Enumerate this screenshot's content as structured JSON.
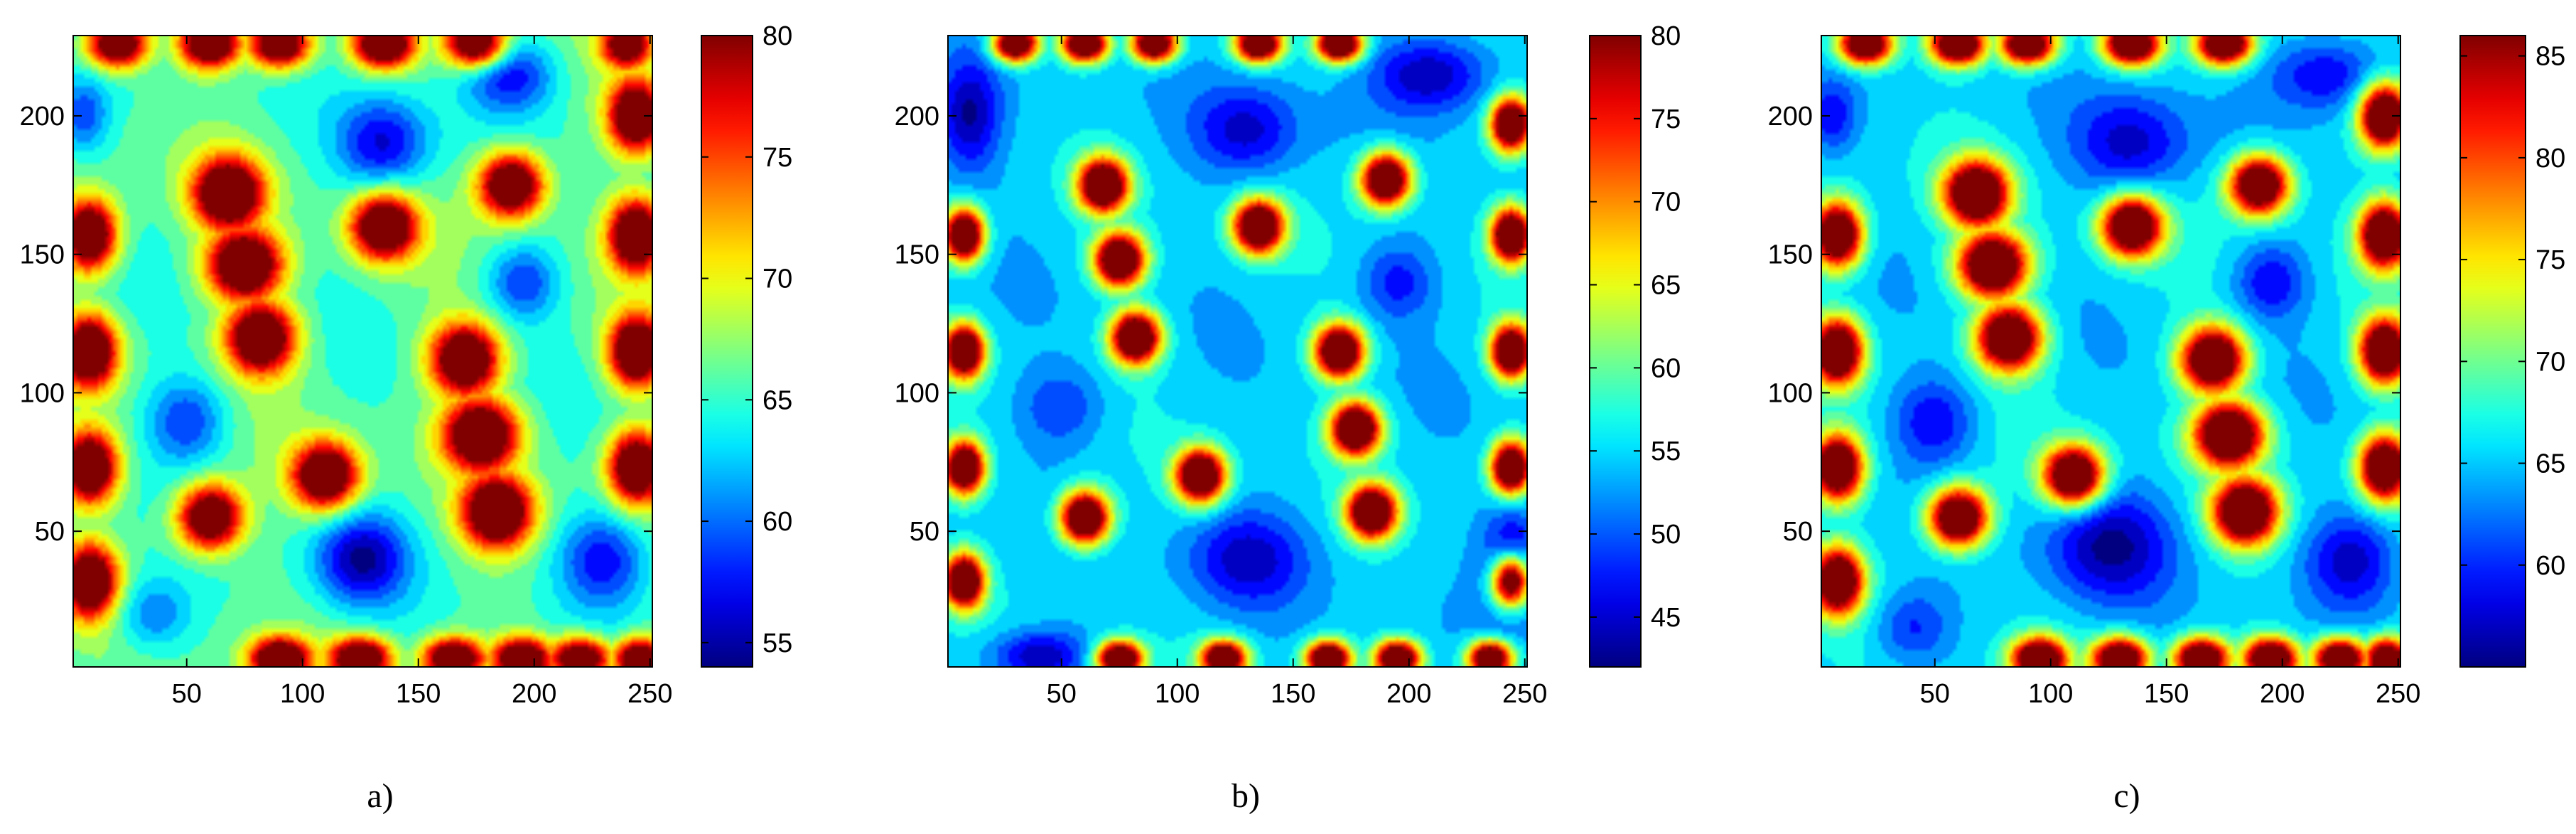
{
  "chart_data": [
    {
      "type": "heatmap",
      "caption": "a)",
      "xlim": [
        1,
        251
      ],
      "ylim": [
        1,
        229
      ],
      "x_ticks": [
        50,
        100,
        150,
        200,
        250
      ],
      "y_ticks": [
        50,
        100,
        150,
        200
      ],
      "colorbar": {
        "colormap": "jet",
        "min": 54,
        "max": 80,
        "ticks": [
          55,
          60,
          65,
          70,
          75,
          80
        ]
      },
      "background": 66,
      "hotspots": [
        {
          "x": 68,
          "y": 172,
          "peak": 80,
          "rx": 14,
          "ry": 12
        },
        {
          "x": 75,
          "y": 146,
          "peak": 80,
          "rx": 15,
          "ry": 12
        },
        {
          "x": 82,
          "y": 120,
          "peak": 80,
          "rx": 14,
          "ry": 12
        },
        {
          "x": 170,
          "y": 112,
          "peak": 80,
          "rx": 14,
          "ry": 12
        },
        {
          "x": 177,
          "y": 85,
          "peak": 80,
          "rx": 15,
          "ry": 12
        },
        {
          "x": 184,
          "y": 57,
          "peak": 80,
          "rx": 14,
          "ry": 12
        },
        {
          "x": 135,
          "y": 160,
          "peak": 80,
          "rx": 13,
          "ry": 11
        },
        {
          "x": 190,
          "y": 175,
          "peak": 80,
          "rx": 13,
          "ry": 11
        },
        {
          "x": 110,
          "y": 70,
          "peak": 80,
          "rx": 13,
          "ry": 11
        },
        {
          "x": 60,
          "y": 55,
          "peak": 80,
          "rx": 13,
          "ry": 11
        },
        {
          "x": 8,
          "y": 157,
          "peak": 80,
          "rx": 11,
          "ry": 12
        },
        {
          "x": 8,
          "y": 115,
          "peak": 80,
          "rx": 11,
          "ry": 12
        },
        {
          "x": 8,
          "y": 73,
          "peak": 80,
          "rx": 11,
          "ry": 12
        },
        {
          "x": 8,
          "y": 32,
          "peak": 80,
          "rx": 11,
          "ry": 12
        },
        {
          "x": 244,
          "y": 200,
          "peak": 80,
          "rx": 11,
          "ry": 12
        },
        {
          "x": 244,
          "y": 157,
          "peak": 80,
          "rx": 11,
          "ry": 12
        },
        {
          "x": 244,
          "y": 115,
          "peak": 80,
          "rx": 11,
          "ry": 12
        },
        {
          "x": 244,
          "y": 73,
          "peak": 80,
          "rx": 11,
          "ry": 12
        },
        {
          "x": 20,
          "y": 226,
          "peak": 80,
          "rx": 12,
          "ry": 8
        },
        {
          "x": 60,
          "y": 226,
          "peak": 80,
          "rx": 12,
          "ry": 8
        },
        {
          "x": 90,
          "y": 226,
          "peak": 80,
          "rx": 12,
          "ry": 8
        },
        {
          "x": 135,
          "y": 226,
          "peak": 80,
          "rx": 12,
          "ry": 8
        },
        {
          "x": 175,
          "y": 226,
          "peak": 80,
          "rx": 12,
          "ry": 8
        },
        {
          "x": 240,
          "y": 226,
          "peak": 78,
          "rx": 10,
          "ry": 8
        },
        {
          "x": 90,
          "y": 4,
          "peak": 80,
          "rx": 12,
          "ry": 7
        },
        {
          "x": 125,
          "y": 4,
          "peak": 80,
          "rx": 12,
          "ry": 7
        },
        {
          "x": 165,
          "y": 4,
          "peak": 80,
          "rx": 12,
          "ry": 7
        },
        {
          "x": 195,
          "y": 4,
          "peak": 80,
          "rx": 12,
          "ry": 7
        },
        {
          "x": 220,
          "y": 4,
          "peak": 80,
          "rx": 12,
          "ry": 7
        },
        {
          "x": 245,
          "y": 4,
          "peak": 80,
          "rx": 10,
          "ry": 7
        }
      ],
      "coldspots": [
        {
          "x": 135,
          "y": 190,
          "depth": 57,
          "rx": 18,
          "ry": 15
        },
        {
          "x": 190,
          "y": 215,
          "depth": 58,
          "rx": 18,
          "ry": 12
        },
        {
          "x": 125,
          "y": 40,
          "depth": 56,
          "rx": 18,
          "ry": 15
        },
        {
          "x": 50,
          "y": 90,
          "depth": 59,
          "rx": 16,
          "ry": 14
        },
        {
          "x": 230,
          "y": 40,
          "depth": 58,
          "rx": 18,
          "ry": 15
        },
        {
          "x": 35,
          "y": 20,
          "depth": 60,
          "rx": 15,
          "ry": 12
        },
        {
          "x": 195,
          "y": 140,
          "depth": 59,
          "rx": 14,
          "ry": 12
        },
        {
          "x": 5,
          "y": 200,
          "depth": 59,
          "rx": 10,
          "ry": 12
        }
      ]
    },
    {
      "type": "heatmap",
      "caption": "b)",
      "xlim": [
        1,
        251
      ],
      "ylim": [
        1,
        229
      ],
      "x_ticks": [
        50,
        100,
        150,
        200,
        250
      ],
      "y_ticks": [
        50,
        100,
        150,
        200
      ],
      "colorbar": {
        "colormap": "jet",
        "min": 42,
        "max": 80,
        "ticks": [
          45,
          50,
          55,
          60,
          65,
          70,
          75,
          80
        ]
      },
      "background": 55,
      "hotspots": [
        {
          "x": 68,
          "y": 175,
          "peak": 80,
          "rx": 10,
          "ry": 9
        },
        {
          "x": 75,
          "y": 148,
          "peak": 80,
          "rx": 10,
          "ry": 9
        },
        {
          "x": 82,
          "y": 120,
          "peak": 80,
          "rx": 10,
          "ry": 9
        },
        {
          "x": 170,
          "y": 115,
          "peak": 80,
          "rx": 10,
          "ry": 9
        },
        {
          "x": 177,
          "y": 87,
          "peak": 80,
          "rx": 10,
          "ry": 9
        },
        {
          "x": 184,
          "y": 57,
          "peak": 80,
          "rx": 10,
          "ry": 9
        },
        {
          "x": 135,
          "y": 160,
          "peak": 80,
          "rx": 10,
          "ry": 9
        },
        {
          "x": 190,
          "y": 177,
          "peak": 80,
          "rx": 10,
          "ry": 9
        },
        {
          "x": 110,
          "y": 70,
          "peak": 80,
          "rx": 10,
          "ry": 9
        },
        {
          "x": 60,
          "y": 55,
          "peak": 80,
          "rx": 10,
          "ry": 9
        },
        {
          "x": 8,
          "y": 157,
          "peak": 80,
          "rx": 8,
          "ry": 9
        },
        {
          "x": 8,
          "y": 115,
          "peak": 80,
          "rx": 8,
          "ry": 9
        },
        {
          "x": 8,
          "y": 73,
          "peak": 80,
          "rx": 8,
          "ry": 9
        },
        {
          "x": 8,
          "y": 32,
          "peak": 80,
          "rx": 8,
          "ry": 9
        },
        {
          "x": 244,
          "y": 197,
          "peak": 80,
          "rx": 8,
          "ry": 9
        },
        {
          "x": 244,
          "y": 157,
          "peak": 80,
          "rx": 8,
          "ry": 9
        },
        {
          "x": 244,
          "y": 115,
          "peak": 80,
          "rx": 8,
          "ry": 9
        },
        {
          "x": 244,
          "y": 73,
          "peak": 80,
          "rx": 8,
          "ry": 9
        },
        {
          "x": 244,
          "y": 32,
          "peak": 80,
          "rx": 8,
          "ry": 9
        },
        {
          "x": 30,
          "y": 226,
          "peak": 80,
          "rx": 9,
          "ry": 6
        },
        {
          "x": 60,
          "y": 226,
          "peak": 80,
          "rx": 9,
          "ry": 6
        },
        {
          "x": 90,
          "y": 226,
          "peak": 80,
          "rx": 9,
          "ry": 6
        },
        {
          "x": 135,
          "y": 226,
          "peak": 80,
          "rx": 9,
          "ry": 6
        },
        {
          "x": 170,
          "y": 226,
          "peak": 80,
          "rx": 9,
          "ry": 6
        },
        {
          "x": 75,
          "y": 4,
          "peak": 80,
          "rx": 9,
          "ry": 6
        },
        {
          "x": 120,
          "y": 4,
          "peak": 80,
          "rx": 9,
          "ry": 6
        },
        {
          "x": 165,
          "y": 4,
          "peak": 80,
          "rx": 9,
          "ry": 6
        },
        {
          "x": 195,
          "y": 4,
          "peak": 80,
          "rx": 9,
          "ry": 6
        },
        {
          "x": 235,
          "y": 4,
          "peak": 80,
          "rx": 9,
          "ry": 6
        }
      ],
      "coldspots": [
        {
          "x": 130,
          "y": 195,
          "depth": 46,
          "rx": 20,
          "ry": 14
        },
        {
          "x": 210,
          "y": 215,
          "depth": 44,
          "rx": 22,
          "ry": 12
        },
        {
          "x": 10,
          "y": 200,
          "depth": 44,
          "rx": 12,
          "ry": 18
        },
        {
          "x": 130,
          "y": 40,
          "depth": 46,
          "rx": 22,
          "ry": 15
        },
        {
          "x": 245,
          "y": 40,
          "depth": 44,
          "rx": 12,
          "ry": 18
        },
        {
          "x": 40,
          "y": 5,
          "depth": 44,
          "rx": 18,
          "ry": 8
        },
        {
          "x": 50,
          "y": 95,
          "depth": 49,
          "rx": 16,
          "ry": 12
        },
        {
          "x": 195,
          "y": 140,
          "depth": 48,
          "rx": 14,
          "ry": 12
        }
      ]
    },
    {
      "type": "heatmap",
      "caption": "c)",
      "xlim": [
        1,
        251
      ],
      "ylim": [
        1,
        229
      ],
      "x_ticks": [
        50,
        100,
        150,
        200,
        250
      ],
      "y_ticks": [
        50,
        100,
        150,
        200
      ],
      "colorbar": {
        "colormap": "jet",
        "min": 55,
        "max": 86,
        "ticks": [
          60,
          65,
          70,
          75,
          80,
          85
        ]
      },
      "background": 66,
      "hotspots": [
        {
          "x": 68,
          "y": 172,
          "peak": 86,
          "rx": 13,
          "ry": 11
        },
        {
          "x": 75,
          "y": 146,
          "peak": 86,
          "rx": 14,
          "ry": 11
        },
        {
          "x": 82,
          "y": 120,
          "peak": 86,
          "rx": 13,
          "ry": 11
        },
        {
          "x": 170,
          "y": 112,
          "peak": 86,
          "rx": 13,
          "ry": 11
        },
        {
          "x": 177,
          "y": 85,
          "peak": 86,
          "rx": 14,
          "ry": 11
        },
        {
          "x": 184,
          "y": 57,
          "peak": 86,
          "rx": 13,
          "ry": 11
        },
        {
          "x": 135,
          "y": 160,
          "peak": 86,
          "rx": 12,
          "ry": 10
        },
        {
          "x": 190,
          "y": 175,
          "peak": 86,
          "rx": 12,
          "ry": 10
        },
        {
          "x": 110,
          "y": 70,
          "peak": 86,
          "rx": 12,
          "ry": 10
        },
        {
          "x": 60,
          "y": 55,
          "peak": 86,
          "rx": 12,
          "ry": 10
        },
        {
          "x": 8,
          "y": 157,
          "peak": 86,
          "rx": 10,
          "ry": 11
        },
        {
          "x": 8,
          "y": 115,
          "peak": 86,
          "rx": 10,
          "ry": 11
        },
        {
          "x": 8,
          "y": 73,
          "peak": 86,
          "rx": 10,
          "ry": 11
        },
        {
          "x": 8,
          "y": 32,
          "peak": 86,
          "rx": 10,
          "ry": 11
        },
        {
          "x": 244,
          "y": 200,
          "peak": 86,
          "rx": 10,
          "ry": 11
        },
        {
          "x": 244,
          "y": 157,
          "peak": 86,
          "rx": 10,
          "ry": 11
        },
        {
          "x": 244,
          "y": 115,
          "peak": 86,
          "rx": 10,
          "ry": 11
        },
        {
          "x": 244,
          "y": 73,
          "peak": 86,
          "rx": 10,
          "ry": 11
        },
        {
          "x": 20,
          "y": 226,
          "peak": 86,
          "rx": 11,
          "ry": 7
        },
        {
          "x": 60,
          "y": 226,
          "peak": 86,
          "rx": 11,
          "ry": 7
        },
        {
          "x": 90,
          "y": 226,
          "peak": 86,
          "rx": 11,
          "ry": 7
        },
        {
          "x": 135,
          "y": 226,
          "peak": 86,
          "rx": 11,
          "ry": 7
        },
        {
          "x": 175,
          "y": 226,
          "peak": 86,
          "rx": 11,
          "ry": 7
        },
        {
          "x": 95,
          "y": 4,
          "peak": 86,
          "rx": 11,
          "ry": 7
        },
        {
          "x": 130,
          "y": 4,
          "peak": 86,
          "rx": 11,
          "ry": 7
        },
        {
          "x": 165,
          "y": 4,
          "peak": 86,
          "rx": 11,
          "ry": 7
        },
        {
          "x": 195,
          "y": 4,
          "peak": 86,
          "rx": 11,
          "ry": 7
        },
        {
          "x": 225,
          "y": 4,
          "peak": 86,
          "rx": 11,
          "ry": 7
        },
        {
          "x": 245,
          "y": 4,
          "peak": 86,
          "rx": 9,
          "ry": 7
        }
      ],
      "coldspots": [
        {
          "x": 135,
          "y": 190,
          "depth": 58,
          "rx": 22,
          "ry": 16
        },
        {
          "x": 220,
          "y": 215,
          "depth": 58,
          "rx": 22,
          "ry": 12
        },
        {
          "x": 125,
          "y": 45,
          "depth": 57,
          "rx": 24,
          "ry": 18
        },
        {
          "x": 50,
          "y": 90,
          "depth": 59,
          "rx": 16,
          "ry": 14
        },
        {
          "x": 230,
          "y": 40,
          "depth": 58,
          "rx": 18,
          "ry": 15
        },
        {
          "x": 40,
          "y": 15,
          "depth": 60,
          "rx": 15,
          "ry": 12
        },
        {
          "x": 195,
          "y": 140,
          "depth": 59,
          "rx": 14,
          "ry": 12
        },
        {
          "x": 5,
          "y": 200,
          "depth": 59,
          "rx": 10,
          "ry": 12
        }
      ]
    }
  ]
}
